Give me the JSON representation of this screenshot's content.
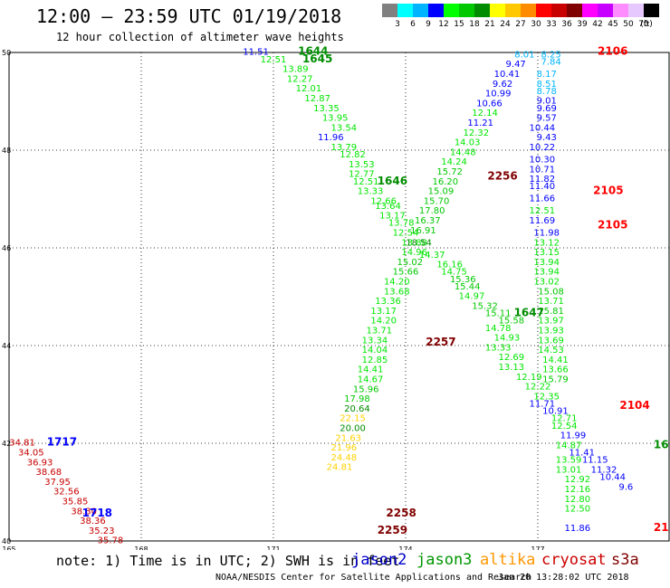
{
  "header": {
    "title": "12:00 – 23:59 UTC 01/19/2018",
    "subtitle": "12 hour collection of altimeter wave heights"
  },
  "colorbar": {
    "unit": "(ft)",
    "levels": [
      {
        "label": "3",
        "color": "#808080"
      },
      {
        "label": "6",
        "color": "#00ffff"
      },
      {
        "label": "9",
        "color": "#00b4ff"
      },
      {
        "label": "12",
        "color": "#0000ff"
      },
      {
        "label": "15",
        "color": "#00ff00"
      },
      {
        "label": "18",
        "color": "#00c800"
      },
      {
        "label": "21",
        "color": "#008c00"
      },
      {
        "label": "24",
        "color": "#ffff00"
      },
      {
        "label": "27",
        "color": "#ffc800"
      },
      {
        "label": "30",
        "color": "#ff8c00"
      },
      {
        "label": "33",
        "color": "#ff0000"
      },
      {
        "label": "36",
        "color": "#c80000"
      },
      {
        "label": "39",
        "color": "#800000"
      },
      {
        "label": "42",
        "color": "#ff00ff"
      },
      {
        "label": "45",
        "color": "#c800ff"
      },
      {
        "label": "50",
        "color": "#ff8cff"
      },
      {
        "label": "70",
        "color": "#e6c8ff"
      },
      {
        "label": "",
        "color": "#000000"
      }
    ]
  },
  "legend": {
    "note": "note: 1) Time is in UTC; 2) SWH is in feet",
    "items": [
      {
        "label": "jason2",
        "color": "#0000cc"
      },
      {
        "label": "jason3",
        "color": "#009600"
      },
      {
        "label": "altika",
        "color": "#ff9600"
      },
      {
        "label": "cryosat",
        "color": "#cc0000"
      },
      {
        "label": "s3a",
        "color": "#800000"
      }
    ]
  },
  "footer": {
    "credit": "NOAA/NESDIS Center for Satellite Applications and Research",
    "timestamp": "Jan 20 13:28:02 UTC 2018"
  },
  "colors": {
    "c9": "#00b4ff",
    "c12": "#0000ff",
    "c15": "#00e600",
    "c18": "#00c800",
    "c21": "#008c00",
    "c24": "#ffd200",
    "c33": "#ff0000",
    "c39": "#800000",
    "c36": "#c80000"
  },
  "chart_data": {
    "type": "scatter",
    "xlim": [
      165,
      180
    ],
    "ylim": [
      40,
      50
    ],
    "xticks": [
      "165",
      "168",
      "171",
      "174",
      "177"
    ],
    "yticks": [
      "40",
      "42",
      "44",
      "46",
      "48",
      "50"
    ],
    "pass_labels": [
      {
        "text": "1644",
        "x": 171.9,
        "y": 49.95,
        "color": "c21"
      },
      {
        "text": "1645",
        "x": 172.0,
        "y": 49.8,
        "color": "c21"
      },
      {
        "text": "1646",
        "x": 173.7,
        "y": 47.3,
        "color": "c21"
      },
      {
        "text": "1647",
        "x": 176.8,
        "y": 44.6,
        "color": "c21"
      },
      {
        "text": "2256",
        "x": 176.2,
        "y": 47.4,
        "color": "c39"
      },
      {
        "text": "2257",
        "x": 174.8,
        "y": 44.0,
        "color": "c39"
      },
      {
        "text": "2258",
        "x": 173.9,
        "y": 40.5,
        "color": "c39"
      },
      {
        "text": "2259",
        "x": 173.7,
        "y": 40.15,
        "color": "c39"
      },
      {
        "text": "2106",
        "x": 178.7,
        "y": 49.95,
        "color": "c33"
      },
      {
        "text": "2105",
        "x": 178.6,
        "y": 47.1,
        "color": "c33"
      },
      {
        "text": "2105",
        "x": 178.7,
        "y": 46.4,
        "color": "c33"
      },
      {
        "text": "2104",
        "x": 179.2,
        "y": 42.7,
        "color": "c33"
      },
      {
        "text": "1717",
        "x": 166.2,
        "y": 41.95,
        "color": "c12"
      },
      {
        "text": "1718",
        "x": 167.0,
        "y": 40.5,
        "color": "c12"
      },
      {
        "text": "16",
        "x": 179.8,
        "y": 41.9,
        "color": "c21"
      },
      {
        "text": "21",
        "x": 179.8,
        "y": 40.2,
        "color": "c33"
      }
    ],
    "points": [
      {
        "v": "11.51",
        "x": 170.6,
        "y": 49.95,
        "color": "c12"
      },
      {
        "v": "12.51",
        "x": 171.0,
        "y": 49.8,
        "color": "c15"
      },
      {
        "v": "13.89",
        "x": 171.5,
        "y": 49.6,
        "color": "c15"
      },
      {
        "v": "12.27",
        "x": 171.6,
        "y": 49.4,
        "color": "c15"
      },
      {
        "v": "12.01",
        "x": 171.8,
        "y": 49.2,
        "color": "c15"
      },
      {
        "v": "12.87",
        "x": 172.0,
        "y": 49.0,
        "color": "c15"
      },
      {
        "v": "13.35",
        "x": 172.2,
        "y": 48.8,
        "color": "c15"
      },
      {
        "v": "13.95",
        "x": 172.4,
        "y": 48.6,
        "color": "c15"
      },
      {
        "v": "13.54",
        "x": 172.6,
        "y": 48.4,
        "color": "c15"
      },
      {
        "v": "11.96",
        "x": 172.3,
        "y": 48.2,
        "color": "c12"
      },
      {
        "v": "13.79",
        "x": 172.6,
        "y": 48.0,
        "color": "c15"
      },
      {
        "v": "12.82",
        "x": 172.8,
        "y": 47.85,
        "color": "c15"
      },
      {
        "v": "13.53",
        "x": 173.0,
        "y": 47.65,
        "color": "c15"
      },
      {
        "v": "12.77",
        "x": 173.0,
        "y": 47.45,
        "color": "c15"
      },
      {
        "v": "12.51",
        "x": 173.1,
        "y": 47.3,
        "color": "c15"
      },
      {
        "v": "13.33",
        "x": 173.2,
        "y": 47.1,
        "color": "c15"
      },
      {
        "v": "12.66",
        "x": 173.5,
        "y": 46.9,
        "color": "c15"
      },
      {
        "v": "13.64",
        "x": 173.6,
        "y": 46.8,
        "color": "c15"
      },
      {
        "v": "13.17",
        "x": 173.7,
        "y": 46.6,
        "color": "c15"
      },
      {
        "v": "13.78",
        "x": 173.9,
        "y": 46.45,
        "color": "c15"
      },
      {
        "v": "12.54",
        "x": 174.0,
        "y": 46.25,
        "color": "c15"
      },
      {
        "v": "13.88",
        "x": 174.2,
        "y": 46.05,
        "color": "c15"
      },
      {
        "v": "14.37",
        "x": 174.6,
        "y": 45.8,
        "color": "c15"
      },
      {
        "v": "16.16",
        "x": 175.0,
        "y": 45.6,
        "color": "c15"
      },
      {
        "v": "14.75",
        "x": 175.1,
        "y": 45.45,
        "color": "c15"
      },
      {
        "v": "15.36",
        "x": 175.3,
        "y": 45.3,
        "color": "c18"
      },
      {
        "v": "15.44",
        "x": 175.4,
        "y": 45.15,
        "color": "c18"
      },
      {
        "v": "14.97",
        "x": 175.5,
        "y": 44.95,
        "color": "c15"
      },
      {
        "v": "15.32",
        "x": 175.8,
        "y": 44.75,
        "color": "c18"
      },
      {
        "v": "15.11",
        "x": 176.1,
        "y": 44.6,
        "color": "c18"
      },
      {
        "v": "15.58",
        "x": 176.4,
        "y": 44.45,
        "color": "c18"
      },
      {
        "v": "14.78",
        "x": 176.1,
        "y": 44.3,
        "color": "c15"
      },
      {
        "v": "14.93",
        "x": 176.3,
        "y": 44.1,
        "color": "c15"
      },
      {
        "v": "13.33",
        "x": 176.1,
        "y": 43.9,
        "color": "c15"
      },
      {
        "v": "12.69",
        "x": 176.4,
        "y": 43.7,
        "color": "c15"
      },
      {
        "v": "13.13",
        "x": 176.4,
        "y": 43.5,
        "color": "c15"
      },
      {
        "v": "12.19",
        "x": 176.8,
        "y": 43.3,
        "color": "c15"
      },
      {
        "v": "12.22",
        "x": 177.0,
        "y": 43.1,
        "color": "c15"
      },
      {
        "v": "12.35",
        "x": 177.2,
        "y": 42.9,
        "color": "c15"
      },
      {
        "v": "11.71",
        "x": 177.1,
        "y": 42.75,
        "color": "c12"
      },
      {
        "v": "10.91",
        "x": 177.4,
        "y": 42.6,
        "color": "c12"
      },
      {
        "v": "12.71",
        "x": 177.6,
        "y": 42.45,
        "color": "c15"
      },
      {
        "v": "12.54",
        "x": 177.6,
        "y": 42.3,
        "color": "c15"
      },
      {
        "v": "11.99",
        "x": 177.8,
        "y": 42.1,
        "color": "c12"
      },
      {
        "v": "14.87",
        "x": 177.7,
        "y": 41.9,
        "color": "c15"
      },
      {
        "v": "11.41",
        "x": 178.0,
        "y": 41.75,
        "color": "c12"
      },
      {
        "v": "13.59",
        "x": 177.7,
        "y": 41.6,
        "color": "c15"
      },
      {
        "v": "11.15",
        "x": 178.3,
        "y": 41.6,
        "color": "c12"
      },
      {
        "v": "13.01",
        "x": 177.7,
        "y": 41.4,
        "color": "c15"
      },
      {
        "v": "11.32",
        "x": 178.5,
        "y": 41.4,
        "color": "c12"
      },
      {
        "v": "12.92",
        "x": 177.9,
        "y": 41.2,
        "color": "c15"
      },
      {
        "v": "10.44",
        "x": 178.7,
        "y": 41.25,
        "color": "c12"
      },
      {
        "v": "12.16",
        "x": 177.9,
        "y": 41.0,
        "color": "c15"
      },
      {
        "v": "9.6",
        "x": 179.0,
        "y": 41.05,
        "color": "c12"
      },
      {
        "v": "12.80",
        "x": 177.9,
        "y": 40.8,
        "color": "c15"
      },
      {
        "v": "12.50",
        "x": 177.9,
        "y": 40.6,
        "color": "c15"
      },
      {
        "v": "11.86",
        "x": 177.9,
        "y": 40.2,
        "color": "c12"
      },
      {
        "v": "8.01",
        "x": 176.7,
        "y": 49.9,
        "color": "c9"
      },
      {
        "v": "8.25",
        "x": 177.3,
        "y": 49.9,
        "color": "c9"
      },
      {
        "v": "9.47",
        "x": 176.5,
        "y": 49.7,
        "color": "c12"
      },
      {
        "v": "7.84",
        "x": 177.3,
        "y": 49.75,
        "color": "c9"
      },
      {
        "v": "10.41",
        "x": 176.3,
        "y": 49.5,
        "color": "c12"
      },
      {
        "v": "8.17",
        "x": 177.2,
        "y": 49.5,
        "color": "c9"
      },
      {
        "v": "9.62",
        "x": 176.2,
        "y": 49.3,
        "color": "c12"
      },
      {
        "v": "8.51",
        "x": 177.2,
        "y": 49.3,
        "color": "c9"
      },
      {
        "v": "10.99",
        "x": 176.1,
        "y": 49.1,
        "color": "c12"
      },
      {
        "v": "8.78",
        "x": 177.2,
        "y": 49.15,
        "color": "c9"
      },
      {
        "v": "10.66",
        "x": 175.9,
        "y": 48.9,
        "color": "c12"
      },
      {
        "v": "9.01",
        "x": 177.2,
        "y": 48.95,
        "color": "c12"
      },
      {
        "v": "12.14",
        "x": 175.8,
        "y": 48.7,
        "color": "c15"
      },
      {
        "v": "9.69",
        "x": 177.2,
        "y": 48.8,
        "color": "c12"
      },
      {
        "v": "11.21",
        "x": 175.7,
        "y": 48.5,
        "color": "c12"
      },
      {
        "v": "9.57",
        "x": 177.2,
        "y": 48.6,
        "color": "c12"
      },
      {
        "v": "12.32",
        "x": 175.6,
        "y": 48.3,
        "color": "c15"
      },
      {
        "v": "10.44",
        "x": 177.1,
        "y": 48.4,
        "color": "c12"
      },
      {
        "v": "14.03",
        "x": 175.4,
        "y": 48.1,
        "color": "c15"
      },
      {
        "v": "9.43",
        "x": 177.2,
        "y": 48.2,
        "color": "c12"
      },
      {
        "v": "14.48",
        "x": 175.3,
        "y": 47.9,
        "color": "c15"
      },
      {
        "v": "10.22",
        "x": 177.1,
        "y": 48.0,
        "color": "c12"
      },
      {
        "v": "14.24",
        "x": 175.1,
        "y": 47.7,
        "color": "c15"
      },
      {
        "v": "10.30",
        "x": 177.1,
        "y": 47.75,
        "color": "c12"
      },
      {
        "v": "15.72",
        "x": 175.0,
        "y": 47.5,
        "color": "c18"
      },
      {
        "v": "10.71",
        "x": 177.1,
        "y": 47.55,
        "color": "c12"
      },
      {
        "v": "16.20",
        "x": 174.9,
        "y": 47.3,
        "color": "c18"
      },
      {
        "v": "11.82",
        "x": 177.1,
        "y": 47.35,
        "color": "c12"
      },
      {
        "v": "15.09",
        "x": 174.8,
        "y": 47.1,
        "color": "c18"
      },
      {
        "v": "11.40",
        "x": 177.1,
        "y": 47.2,
        "color": "c12"
      },
      {
        "v": "15.70",
        "x": 174.7,
        "y": 46.9,
        "color": "c18"
      },
      {
        "v": "11.66",
        "x": 177.1,
        "y": 46.95,
        "color": "c12"
      },
      {
        "v": "17.80",
        "x": 174.6,
        "y": 46.7,
        "color": "c18"
      },
      {
        "v": "12.51",
        "x": 177.1,
        "y": 46.7,
        "color": "c15"
      },
      {
        "v": "16.37",
        "x": 174.5,
        "y": 46.5,
        "color": "c18"
      },
      {
        "v": "11.69",
        "x": 177.1,
        "y": 46.5,
        "color": "c12"
      },
      {
        "v": "16.91",
        "x": 174.4,
        "y": 46.3,
        "color": "c18"
      },
      {
        "v": "11.98",
        "x": 177.2,
        "y": 46.25,
        "color": "c12"
      },
      {
        "v": "18.54",
        "x": 174.3,
        "y": 46.05,
        "color": "c21"
      },
      {
        "v": "13.12",
        "x": 177.2,
        "y": 46.05,
        "color": "c15"
      },
      {
        "v": "14.96",
        "x": 174.2,
        "y": 45.85,
        "color": "c15"
      },
      {
        "v": "13.15",
        "x": 177.2,
        "y": 45.85,
        "color": "c15"
      },
      {
        "v": "15.02",
        "x": 174.1,
        "y": 45.65,
        "color": "c18"
      },
      {
        "v": "13.94",
        "x": 177.2,
        "y": 45.65,
        "color": "c15"
      },
      {
        "v": "15.66",
        "x": 174.0,
        "y": 45.45,
        "color": "c18"
      },
      {
        "v": "13.94",
        "x": 177.2,
        "y": 45.45,
        "color": "c15"
      },
      {
        "v": "14.20",
        "x": 173.8,
        "y": 45.25,
        "color": "c15"
      },
      {
        "v": "13.02",
        "x": 177.2,
        "y": 45.25,
        "color": "c15"
      },
      {
        "v": "13.68",
        "x": 173.8,
        "y": 45.05,
        "color": "c15"
      },
      {
        "v": "15.08",
        "x": 177.3,
        "y": 45.05,
        "color": "c18"
      },
      {
        "v": "13.36",
        "x": 173.6,
        "y": 44.85,
        "color": "c15"
      },
      {
        "v": "13.71",
        "x": 177.3,
        "y": 44.85,
        "color": "c15"
      },
      {
        "v": "13.17",
        "x": 173.5,
        "y": 44.65,
        "color": "c15"
      },
      {
        "v": "15.81",
        "x": 177.3,
        "y": 44.65,
        "color": "c18"
      },
      {
        "v": "14.20",
        "x": 173.5,
        "y": 44.45,
        "color": "c15"
      },
      {
        "v": "13.97",
        "x": 177.3,
        "y": 44.45,
        "color": "c15"
      },
      {
        "v": "13.71",
        "x": 173.4,
        "y": 44.25,
        "color": "c15"
      },
      {
        "v": "13.93",
        "x": 177.3,
        "y": 44.25,
        "color": "c15"
      },
      {
        "v": "13.34",
        "x": 173.3,
        "y": 44.05,
        "color": "c15"
      },
      {
        "v": "13.69",
        "x": 177.3,
        "y": 44.05,
        "color": "c15"
      },
      {
        "v": "14.04",
        "x": 173.3,
        "y": 43.85,
        "color": "c15"
      },
      {
        "v": "14.53",
        "x": 177.3,
        "y": 43.85,
        "color": "c15"
      },
      {
        "v": "12.85",
        "x": 173.3,
        "y": 43.65,
        "color": "c15"
      },
      {
        "v": "14.41",
        "x": 177.4,
        "y": 43.65,
        "color": "c15"
      },
      {
        "v": "14.41",
        "x": 173.2,
        "y": 43.45,
        "color": "c15"
      },
      {
        "v": "13.66",
        "x": 177.4,
        "y": 43.45,
        "color": "c15"
      },
      {
        "v": "14.67",
        "x": 173.2,
        "y": 43.25,
        "color": "c15"
      },
      {
        "v": "15.79",
        "x": 177.4,
        "y": 43.25,
        "color": "c18"
      },
      {
        "v": "15.96",
        "x": 173.1,
        "y": 43.05,
        "color": "c18"
      },
      {
        "v": "17.98",
        "x": 172.9,
        "y": 42.85,
        "color": "c18"
      },
      {
        "v": "20.64",
        "x": 172.9,
        "y": 42.65,
        "color": "c21"
      },
      {
        "v": "22.15",
        "x": 172.8,
        "y": 42.45,
        "color": "c24"
      },
      {
        "v": "20.00",
        "x": 172.8,
        "y": 42.25,
        "color": "c21"
      },
      {
        "v": "21.63",
        "x": 172.7,
        "y": 42.05,
        "color": "c24"
      },
      {
        "v": "21.96",
        "x": 172.6,
        "y": 41.85,
        "color": "c24"
      },
      {
        "v": "24.48",
        "x": 172.6,
        "y": 41.65,
        "color": "c24"
      },
      {
        "v": "24.81",
        "x": 172.5,
        "y": 41.45,
        "color": "c24"
      },
      {
        "v": "34.81",
        "x": 165.3,
        "y": 41.95,
        "color": "c36"
      },
      {
        "v": "34.05",
        "x": 165.5,
        "y": 41.75,
        "color": "c36"
      },
      {
        "v": "36.93",
        "x": 165.7,
        "y": 41.55,
        "color": "c36"
      },
      {
        "v": "38.68",
        "x": 165.9,
        "y": 41.35,
        "color": "c36"
      },
      {
        "v": "37.95",
        "x": 166.1,
        "y": 41.15,
        "color": "c36"
      },
      {
        "v": "32.56",
        "x": 166.3,
        "y": 40.95,
        "color": "c36"
      },
      {
        "v": "35.85",
        "x": 166.5,
        "y": 40.75,
        "color": "c36"
      },
      {
        "v": "38.30",
        "x": 166.7,
        "y": 40.55,
        "color": "c36"
      },
      {
        "v": "38.36",
        "x": 166.9,
        "y": 40.35,
        "color": "c36"
      },
      {
        "v": "35.23",
        "x": 167.1,
        "y": 40.15,
        "color": "c36"
      },
      {
        "v": "35.78",
        "x": 167.3,
        "y": 39.95,
        "color": "c36"
      }
    ]
  }
}
